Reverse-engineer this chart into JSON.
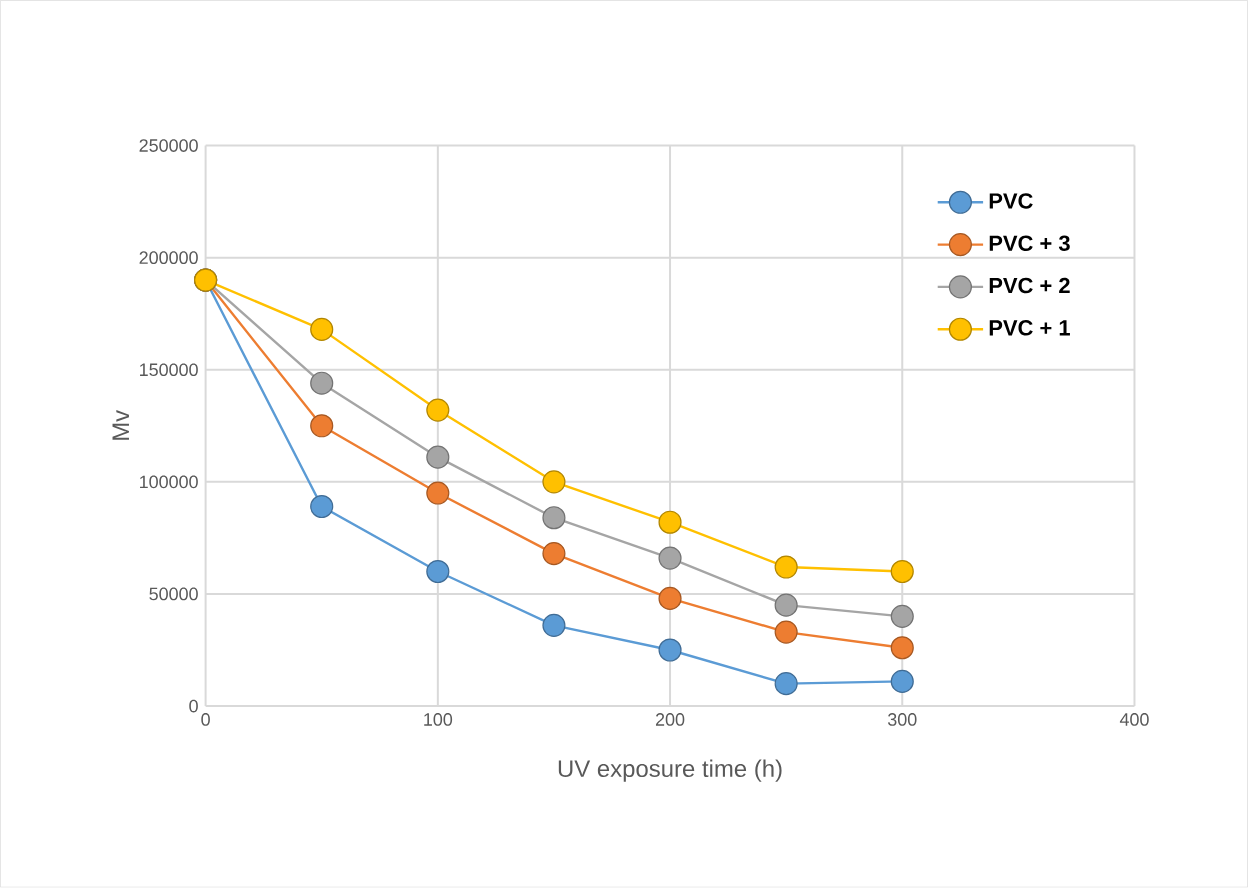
{
  "chart_data": {
    "type": "line",
    "xlabel": "UV exposure time (h)",
    "ylabel": "Mv",
    "x": [
      0,
      50,
      100,
      150,
      200,
      250,
      300
    ],
    "series": [
      {
        "name": "PVC",
        "color": "#5b9bd5",
        "values": [
          190000,
          89000,
          60000,
          36000,
          25000,
          10000,
          11000
        ]
      },
      {
        "name": "PVC + 3",
        "color": "#ed7d31",
        "values": [
          190000,
          125000,
          95000,
          68000,
          48000,
          33000,
          26000
        ]
      },
      {
        "name": "PVC + 2",
        "color": "#a5a5a5",
        "values": [
          190000,
          144000,
          111000,
          84000,
          66000,
          45000,
          40000
        ]
      },
      {
        "name": "PVC + 1",
        "color": "#ffc000",
        "values": [
          190000,
          168000,
          132000,
          100000,
          82000,
          62000,
          60000
        ]
      }
    ],
    "xlim": [
      0,
      400
    ],
    "xticks": [
      0,
      100,
      200,
      300,
      400
    ],
    "ylim": [
      0,
      250000
    ],
    "yticks": [
      0,
      50000,
      100000,
      150000,
      200000,
      250000
    ],
    "grid": true,
    "legend": "top right",
    "marker": "circle",
    "line_style": "solid"
  }
}
